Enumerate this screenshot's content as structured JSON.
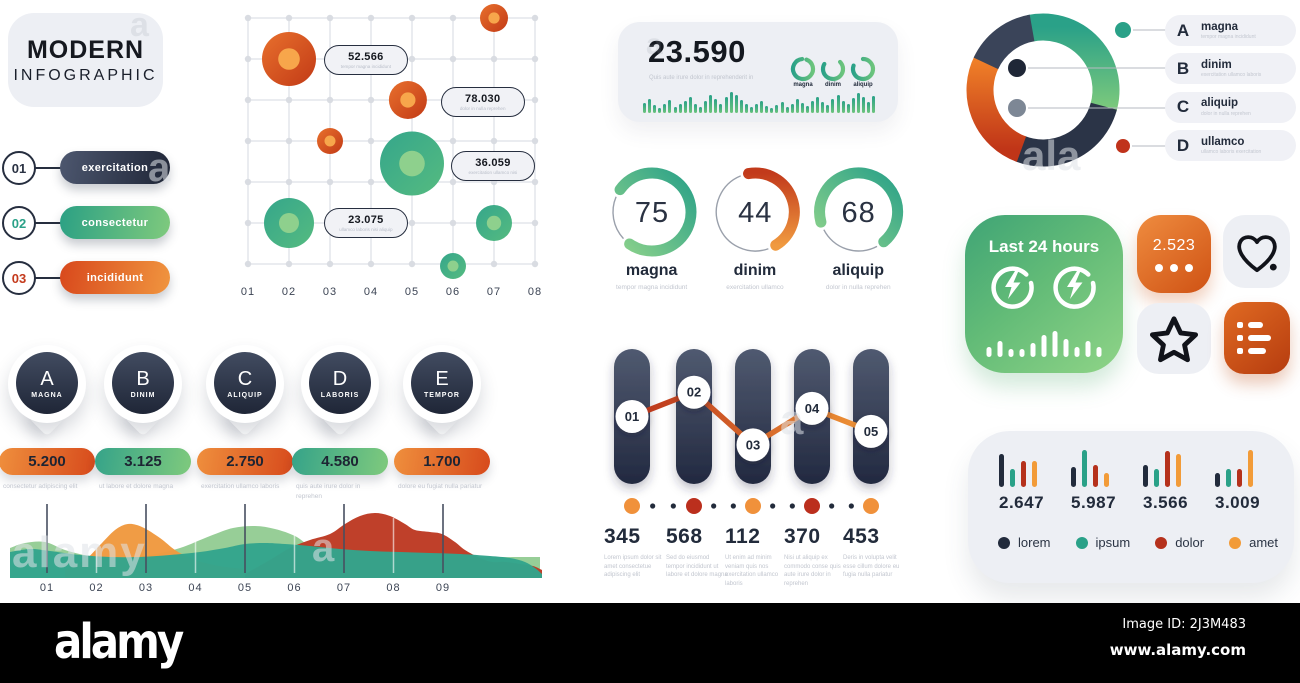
{
  "title_card": {
    "line1": "MODERN",
    "line2": "INFOGRAPHIC"
  },
  "steps": [
    {
      "num": "01",
      "label": "exercitation"
    },
    {
      "num": "02",
      "label": "consectetur"
    },
    {
      "num": "03",
      "label": "incididunt"
    }
  ],
  "chart_data": [
    {
      "id": "bubble",
      "type": "scatter",
      "x_ticks": [
        "01",
        "02",
        "03",
        "04",
        "05",
        "06",
        "07",
        "08"
      ],
      "points": [
        {
          "x": 2,
          "y": 1,
          "r": 27,
          "color": "orange"
        },
        {
          "x": 7,
          "y": 0,
          "r": 14,
          "color": "orange"
        },
        {
          "x": 4.9,
          "y": 2,
          "r": 19,
          "color": "orange"
        },
        {
          "x": 3,
          "y": 3,
          "r": 13,
          "color": "orange"
        },
        {
          "x": 5,
          "y": 3.55,
          "r": 32,
          "color": "green"
        },
        {
          "x": 2,
          "y": 5,
          "r": 25,
          "color": "green"
        },
        {
          "x": 7,
          "y": 5,
          "r": 18,
          "color": "green"
        },
        {
          "x": 6,
          "y": 6.05,
          "r": 13,
          "color": "green"
        }
      ],
      "labels": [
        {
          "value": "52.566",
          "sub": "tempor magna incididunt",
          "x": 3.85,
          "y": 1
        },
        {
          "value": "78.030",
          "sub": "dolor in nulla reprehen",
          "x": 6.7,
          "y": 2.02
        },
        {
          "value": "36.059",
          "sub": "exercitation ullamco nisi",
          "x": 6.95,
          "y": 3.58
        },
        {
          "value": "23.075",
          "sub": "ullamco laboris nisi aliquip",
          "x": 3.85,
          "y": 4.98
        }
      ]
    },
    {
      "id": "stat",
      "type": "bar",
      "value": "23.590",
      "sub": "Quis aute irure dolor in reprehenderit in",
      "rings": [
        {
          "label": "magna",
          "start": 20,
          "sweep": 335
        },
        {
          "label": "dinim",
          "start": 45,
          "sweep": 255
        },
        {
          "label": "aliquip",
          "start": 0,
          "sweep": 290
        }
      ],
      "sparkline": [
        10,
        14,
        8,
        5,
        9,
        13,
        6,
        9,
        12,
        16,
        9,
        6,
        12,
        18,
        14,
        9,
        16,
        21,
        18,
        13,
        9,
        6,
        9,
        12,
        7,
        5,
        8,
        11,
        6,
        9,
        14,
        10,
        7,
        12,
        16,
        11,
        8,
        14,
        18,
        12,
        9,
        15,
        20,
        16,
        11,
        17
      ]
    },
    {
      "id": "gauges",
      "type": "donut",
      "items": [
        {
          "value": 75,
          "label": "magna",
          "sub": "tempor magna incididunt",
          "color": "green",
          "start": 305
        },
        {
          "value": 44,
          "label": "dinim",
          "sub": "exercitation ullamco",
          "color": "orange",
          "start": 350
        },
        {
          "value": 68,
          "label": "aliquip",
          "sub": "dolor in nulla reprehen",
          "color": "green",
          "start": 255
        }
      ]
    },
    {
      "id": "timeline",
      "type": "line",
      "nodes": [
        {
          "label": "01",
          "pos": 0.5
        },
        {
          "label": "02",
          "pos": 0.32
        },
        {
          "label": "03",
          "pos": 0.71
        },
        {
          "label": "04",
          "pos": 0.44
        },
        {
          "label": "05",
          "pos": 0.61
        }
      ],
      "dot_colors": [
        "orange",
        "red",
        "orange",
        "red",
        "orange"
      ],
      "stats": [
        {
          "value": "345",
          "sub": "Lorem ipsum dolor sit amet consectetue adipiscing elit"
        },
        {
          "value": "568",
          "sub": "Sed do eiusmod tempor incididunt ut labore et dolore magna"
        },
        {
          "value": "112",
          "sub": "Ut enim ad minim veniam quis nos exercitation ullamco laboris"
        },
        {
          "value": "370",
          "sub": "Nisi ut aliquip ex commodo conse quis aute irure dolor in reprehen"
        },
        {
          "value": "453",
          "sub": "Deris in volupta velit esse cillum dolore eu fugia nulla pariatur"
        }
      ]
    },
    {
      "id": "markers",
      "type": "table",
      "items": [
        {
          "letter": "A",
          "name": "MAGNA",
          "value": "5.200",
          "color": "orange",
          "sub": "consectetur adipiscing elit"
        },
        {
          "letter": "B",
          "name": "DINIM",
          "value": "3.125",
          "color": "green",
          "sub": "ut labore et dolore magna"
        },
        {
          "letter": "C",
          "name": "ALIQUIP",
          "value": "2.750",
          "color": "orange",
          "sub": "exercitation ullamco laboris"
        },
        {
          "letter": "D",
          "name": "LABORIS",
          "value": "4.580",
          "color": "green",
          "sub": "quis aute irure dolor in reprehen"
        },
        {
          "letter": "E",
          "name": "TEMPOR",
          "value": "1.700",
          "color": "orange",
          "sub": "dolore eu fugiat nulla pariatur"
        }
      ]
    },
    {
      "id": "area",
      "type": "area",
      "x_ticks": [
        "01",
        "02",
        "03",
        "04",
        "05",
        "06",
        "07",
        "08",
        "09"
      ],
      "series": [
        {
          "name": "lightgreen",
          "color": "#8cc98c",
          "points": [
            [
              0,
              50
            ],
            [
              15,
              45
            ],
            [
              35,
              44
            ],
            [
              55,
              52
            ],
            [
              80,
              58
            ],
            [
              110,
              60
            ],
            [
              140,
              57
            ],
            [
              170,
              50
            ],
            [
              200,
              38
            ],
            [
              223,
              30
            ],
            [
              245,
              28
            ],
            [
              265,
              31
            ],
            [
              285,
              38
            ],
            [
              300,
              48
            ],
            [
              320,
              55
            ],
            [
              345,
              59
            ],
            [
              530,
              59
            ]
          ]
        },
        {
          "name": "orange",
          "color": "#f0993f",
          "points": [
            [
              55,
              72
            ],
            [
              75,
              62
            ],
            [
              90,
              47
            ],
            [
              105,
              32
            ],
            [
              118,
              26
            ],
            [
              132,
              29
            ],
            [
              150,
              40
            ],
            [
              165,
              52
            ],
            [
              180,
              60
            ],
            [
              195,
              65
            ],
            [
              215,
              69
            ],
            [
              235,
              71
            ]
          ]
        },
        {
          "name": "red",
          "color": "#bd3a23",
          "points": [
            [
              235,
              76
            ],
            [
              260,
              62
            ],
            [
              280,
              50
            ],
            [
              300,
              42
            ],
            [
              320,
              36
            ],
            [
              335,
              26
            ],
            [
              350,
              18
            ],
            [
              365,
              15
            ],
            [
              380,
              18
            ],
            [
              395,
              26
            ],
            [
              405,
              32
            ],
            [
              420,
              34
            ],
            [
              432,
              36
            ],
            [
              445,
              44
            ],
            [
              455,
              52
            ],
            [
              470,
              60
            ],
            [
              482,
              64
            ],
            [
              495,
              64
            ],
            [
              510,
              66
            ],
            [
              523,
              68
            ],
            [
              532,
              72
            ]
          ]
        },
        {
          "name": "teal",
          "color": "#33a48c",
          "points": [
            [
              0,
              54
            ],
            [
              20,
              51
            ],
            [
              40,
              53
            ],
            [
              70,
              57
            ],
            [
              100,
              59
            ],
            [
              130,
              59
            ],
            [
              160,
              57
            ],
            [
              190,
              54
            ],
            [
              215,
              50
            ],
            [
              235,
              46
            ],
            [
              255,
              45
            ],
            [
              275,
              46
            ],
            [
              300,
              48
            ],
            [
              330,
              51
            ],
            [
              360,
              53
            ],
            [
              390,
              54
            ],
            [
              420,
              55
            ],
            [
              450,
              56
            ],
            [
              480,
              58
            ],
            [
              500,
              60
            ],
            [
              515,
              64
            ],
            [
              525,
              70
            ],
            [
              532,
              76
            ]
          ]
        }
      ]
    },
    {
      "id": "ring",
      "type": "pie",
      "segments": [
        {
          "color": "green",
          "from": -12,
          "to": 105
        },
        {
          "color": "navy",
          "from": 105,
          "to": 200
        },
        {
          "color": "orange",
          "from": 200,
          "to": 295
        },
        {
          "color": "navy2",
          "from": 295,
          "to": 348
        }
      ],
      "legend": [
        {
          "letter": "A",
          "label": "magna",
          "sub": "tempor magna incididunt",
          "dot": "#2aa188"
        },
        {
          "letter": "B",
          "label": "dinim",
          "sub": "exercitation ullamco laboris",
          "dot": "#1f2737"
        },
        {
          "letter": "C",
          "label": "aliquip",
          "sub": "dolor in nulla reprehen",
          "dot": "#7d8795"
        },
        {
          "letter": "D",
          "label": "ullamco",
          "sub": "ullamco laboris exercitation",
          "dot": "#c0331b"
        }
      ]
    },
    {
      "id": "minibars",
      "type": "bar",
      "groups": [
        {
          "value": "2.647",
          "bars": [
            33,
            18,
            26,
            26
          ]
        },
        {
          "value": "5.987",
          "bars": [
            20,
            37,
            22,
            14
          ]
        },
        {
          "value": "3.566",
          "bars": [
            22,
            18,
            36,
            33
          ]
        },
        {
          "value": "3.009",
          "bars": [
            14,
            18,
            18,
            37
          ]
        }
      ],
      "legend": [
        {
          "label": "lorem",
          "color": "#222b3c"
        },
        {
          "label": "ipsum",
          "color": "#2aa188"
        },
        {
          "label": "dolor",
          "color": "#b5311c"
        },
        {
          "label": "amet",
          "color": "#f29b38"
        }
      ]
    }
  ],
  "widgets": {
    "last24": {
      "title": "Last 24 hours",
      "bars": [
        10,
        16,
        8,
        8,
        14,
        22,
        26,
        18,
        10,
        16,
        10
      ]
    },
    "counter": {
      "value": "2.523"
    }
  },
  "brand_bar": {
    "logo": "alamy",
    "image_id": "Image ID: 2J3M483",
    "url": "www.alamy.com"
  },
  "colors": {
    "navy": "#222b3c",
    "green": "#2aa188",
    "light_green": "#7fca7d",
    "orange": "#f0913b",
    "red": "#c0331b",
    "card": "#edeff4"
  }
}
